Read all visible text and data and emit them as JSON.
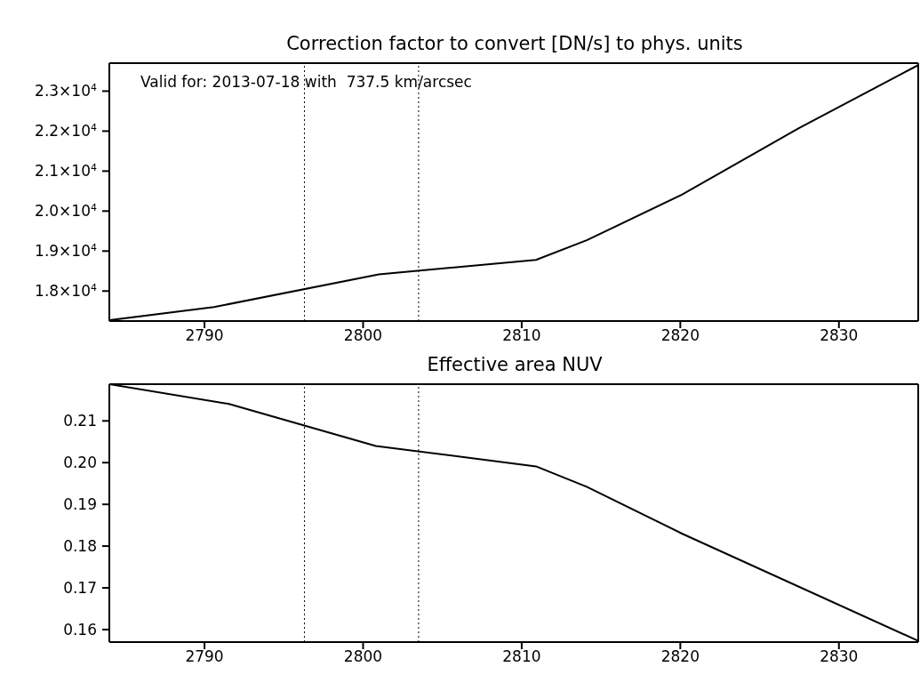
{
  "chart_data": [
    {
      "type": "line",
      "title": "Correction factor to convert [DN/s] to phys. units",
      "annotations": [
        "Valid for: 2013-07-18 with  737.5 km/arcsec"
      ],
      "x": [
        2784,
        2790.6,
        2801.0,
        2810.9,
        2814.1,
        2820.1,
        2827.5,
        2835
      ],
      "series": [
        {
          "color": "#000000",
          "values": [
            17270,
            17600,
            18420,
            18780,
            19270,
            20410,
            22080,
            23650
          ]
        }
      ],
      "xlim": [
        2784,
        2835
      ],
      "xticks": [
        2790,
        2800,
        2810,
        2820,
        2830
      ],
      "ylim": [
        17250,
        23700
      ],
      "yticks": [
        {
          "value": 18000,
          "label": "1.8×10$^{4}$"
        },
        {
          "value": 19000,
          "label": "1.9×10$^{4}$"
        },
        {
          "value": 20000,
          "label": "2.0×10$^{4}$"
        },
        {
          "value": 21000,
          "label": "2.1×10$^{4}$"
        },
        {
          "value": 22000,
          "label": "2.2×10$^{4}$"
        },
        {
          "value": 23000,
          "label": "2.3×10$^{4}$"
        }
      ],
      "ref_lines": [
        {
          "axis": "x",
          "value": 2796.3,
          "line_style": "dotted"
        },
        {
          "axis": "x",
          "value": 2803.5,
          "line_style": "dotted"
        }
      ],
      "grid": false,
      "legend": false,
      "marker": "none",
      "line_style": "solid"
    },
    {
      "type": "line",
      "title": "Effective area NUV",
      "x": [
        2784,
        2791.5,
        2800.8,
        2810.9,
        2814.1,
        2820.1,
        2835
      ],
      "series": [
        {
          "color": "#000000",
          "values": [
            0.2188,
            0.2141,
            0.204,
            0.1991,
            0.1942,
            0.183,
            0.1573
          ]
        }
      ],
      "xlim": [
        2784,
        2835
      ],
      "xticks": [
        2790,
        2800,
        2810,
        2820,
        2830
      ],
      "ylim": [
        0.157,
        0.2188
      ],
      "yticks": [
        {
          "value": 0.16,
          "label": "0.16"
        },
        {
          "value": 0.17,
          "label": "0.17"
        },
        {
          "value": 0.18,
          "label": "0.18"
        },
        {
          "value": 0.19,
          "label": "0.19"
        },
        {
          "value": 0.2,
          "label": "0.20"
        },
        {
          "value": 0.21,
          "label": "0.21"
        }
      ],
      "ref_lines": [
        {
          "axis": "x",
          "value": 2796.3,
          "line_style": "dotted"
        },
        {
          "axis": "x",
          "value": 2803.5,
          "line_style": "dotted"
        }
      ],
      "grid": false,
      "legend": false,
      "marker": "none",
      "line_style": "solid"
    }
  ]
}
